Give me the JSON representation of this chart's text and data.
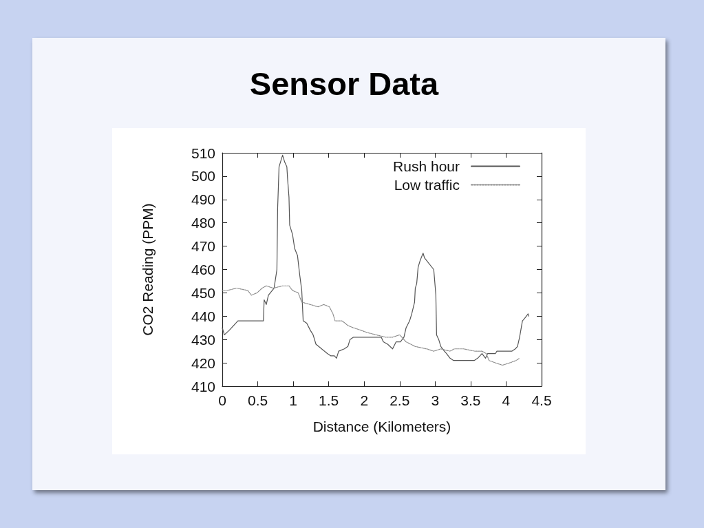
{
  "chart_data": {
    "type": "line",
    "title": "Sensor Data",
    "xlabel": "Distance (Kilometers)",
    "ylabel": "CO2 Reading (PPM)",
    "xlim": [
      0,
      4.5
    ],
    "xticks": [
      0,
      0.5,
      1,
      1.5,
      2,
      2.5,
      3,
      3.5,
      4,
      4.5
    ],
    "ylim": [
      410,
      510
    ],
    "yticks": [
      410,
      420,
      430,
      440,
      450,
      460,
      470,
      480,
      490,
      500,
      510
    ],
    "grid": false,
    "legend": "top right",
    "marker": "none",
    "series": [
      {
        "name": "Rush hour",
        "color": "#555555",
        "line_style": "solid",
        "x": [
          0,
          0.03,
          0.1,
          0.22,
          0.58,
          0.59,
          0.62,
          0.65,
          0.73,
          0.77,
          0.78,
          0.8,
          0.83,
          0.85,
          0.88,
          0.91,
          0.92,
          0.94,
          0.95,
          0.99,
          1.02,
          1.06,
          1.09,
          1.12,
          1.14,
          1.19,
          1.24,
          1.28,
          1.32,
          1.4,
          1.48,
          1.53,
          1.58,
          1.61,
          1.64,
          1.72,
          1.77,
          1.8,
          1.85,
          2.24,
          2.27,
          2.33,
          2.4,
          2.45,
          2.51,
          2.56,
          2.59,
          2.64,
          2.67,
          2.71,
          2.72,
          2.74,
          2.76,
          2.79,
          2.83,
          2.85,
          2.98,
          3.01,
          3.02,
          3.05,
          3.08,
          3.13,
          3.16,
          3.21,
          3.26,
          3.4,
          3.55,
          3.6,
          3.66,
          3.71,
          3.74,
          3.85,
          3.87,
          4.08,
          4.13,
          4.16,
          4.19,
          4.23,
          4.26,
          4.31,
          4.32
        ],
        "values": [
          435,
          432,
          434,
          438,
          438,
          447,
          445,
          449,
          452,
          460,
          486,
          504,
          507,
          509,
          506,
          504,
          499,
          491,
          479,
          475,
          469,
          466,
          458,
          451,
          438,
          437,
          434,
          432,
          428,
          426,
          424,
          423,
          423,
          422,
          425,
          426,
          427,
          430,
          431,
          431,
          429,
          428,
          426,
          429,
          429,
          431,
          435,
          438,
          441,
          446,
          452,
          454,
          461,
          464,
          467,
          465,
          460,
          449,
          432,
          430,
          427,
          425,
          424,
          422,
          421,
          421,
          421,
          422,
          424,
          422,
          424,
          424,
          425,
          425,
          426,
          427,
          431,
          438,
          439,
          441,
          440
        ]
      },
      {
        "name": "Low traffic",
        "color": "#8a8a8a",
        "line_style": "dotted",
        "x": [
          0,
          0.07,
          0.2,
          0.36,
          0.41,
          0.49,
          0.56,
          0.62,
          0.72,
          0.85,
          0.94,
          0.99,
          1.07,
          1.12,
          1.24,
          1.35,
          1.43,
          1.51,
          1.56,
          1.59,
          1.69,
          1.77,
          1.85,
          1.95,
          2.04,
          2.17,
          2.3,
          2.4,
          2.5,
          2.59,
          2.72,
          2.88,
          2.98,
          3.08,
          3.21,
          3.27,
          3.4,
          3.56,
          3.66,
          3.72,
          3.76,
          3.85,
          3.95,
          4.05,
          4.14,
          4.19
        ],
        "values": [
          451,
          451,
          452,
          451,
          449,
          450,
          452,
          453,
          452,
          453,
          453,
          451,
          450,
          446,
          445,
          444,
          445,
          444,
          441,
          438,
          438,
          436,
          435,
          434,
          433,
          432,
          431,
          431,
          432,
          429,
          427,
          426,
          425,
          426,
          425,
          426,
          426,
          425,
          425,
          424,
          421,
          420,
          419,
          420,
          421,
          422
        ]
      }
    ]
  }
}
